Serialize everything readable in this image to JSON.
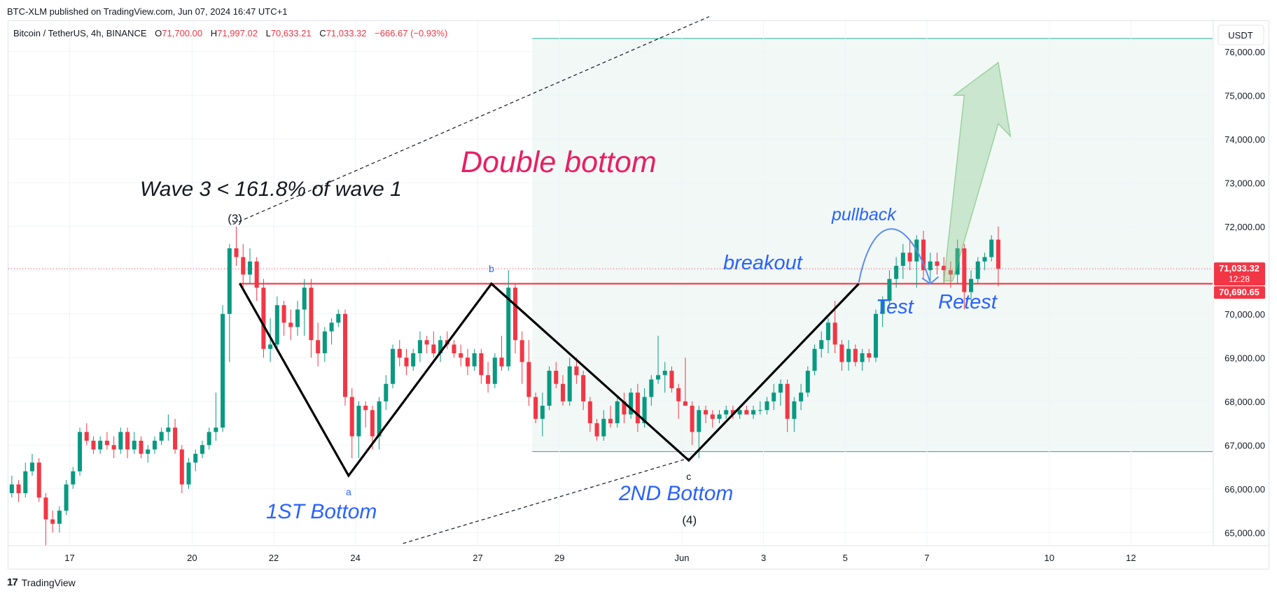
{
  "header": {
    "publish_line": "BTC-XLM published on TradingView.com, Jun 07, 2024 16:47 UTC+1"
  },
  "legend": {
    "symbol": "Bitcoin / TetherUS, 4h, BINANCE",
    "o_label": "O",
    "o_value": "71,700.00",
    "h_label": "H",
    "h_value": "71,997.02",
    "l_label": "L",
    "l_value": "70,633.21",
    "c_label": "C",
    "c_value": "71,033.32",
    "change": "−666.67 (−0.93%)"
  },
  "footer": {
    "logo_mark": "17",
    "logo_text": "TradingView"
  },
  "colors": {
    "up": "#089981",
    "down": "#f23645",
    "annotation_blue": "#2962ff",
    "title_pink": "#e91e63",
    "zone_fill": "#f1f8f6",
    "zone_line": "#22ab94",
    "level_red": "#f23645"
  },
  "chart_data": {
    "type": "candlestick",
    "symbol": "BTCUSDT",
    "timeframe": "4h",
    "currency_button": "USDT",
    "y_ticks": [
      65000,
      66000,
      67000,
      68000,
      69000,
      70000,
      71000,
      72000,
      73000,
      74000,
      75000,
      76000
    ],
    "y_tick_labels": [
      "65,000.00",
      "66,000.00",
      "67,000.00",
      "68,000.00",
      "69,000.00",
      "70,000.00",
      "71,000.00",
      "72,000.00",
      "73,000.00",
      "74,000.00",
      "75,000.00",
      "76,000.00"
    ],
    "ylim": [
      64700,
      76700
    ],
    "x_ticks": [
      {
        "label": "17",
        "slot": 9
      },
      {
        "label": "20",
        "slot": 27
      },
      {
        "label": "22",
        "slot": 39
      },
      {
        "label": "24",
        "slot": 51
      },
      {
        "label": "27",
        "slot": 69
      },
      {
        "label": "29",
        "slot": 81
      },
      {
        "label": "Jun",
        "slot": 99
      },
      {
        "label": "3",
        "slot": 111
      },
      {
        "label": "5",
        "slot": 123
      },
      {
        "label": "7",
        "slot": 135
      },
      {
        "label": "10",
        "slot": 153
      },
      {
        "label": "12",
        "slot": 165
      }
    ],
    "slots_visible": [
      0,
      177
    ],
    "price_labels": [
      {
        "value": 71033.32,
        "text": "71,033.32",
        "sub": "12:28"
      },
      {
        "value": 70690.65,
        "text": "70,690.65"
      }
    ],
    "last_price": 71033.32,
    "neckline": 70690.65,
    "target_zone": {
      "from_slot": 77,
      "to_slot": 177,
      "top": 76300,
      "bottom": 66850
    },
    "candles": [
      [
        65900,
        66300,
        65800,
        66100
      ],
      [
        66100,
        66200,
        65700,
        65900
      ],
      [
        65900,
        66600,
        65800,
        66400
      ],
      [
        66400,
        66800,
        66300,
        66600
      ],
      [
        66600,
        66700,
        65700,
        65800
      ],
      [
        65800,
        65900,
        64700,
        65300
      ],
      [
        65300,
        65500,
        65000,
        65200
      ],
      [
        65200,
        65600,
        65000,
        65500
      ],
      [
        65500,
        66200,
        65400,
        66100
      ],
      [
        66100,
        66500,
        66000,
        66400
      ],
      [
        66400,
        67400,
        66300,
        67300
      ],
      [
        67300,
        67500,
        67000,
        67100
      ],
      [
        67100,
        67200,
        66800,
        66900
      ],
      [
        66900,
        67200,
        66800,
        67100
      ],
      [
        67100,
        67300,
        66900,
        67000
      ],
      [
        67000,
        67200,
        66700,
        66900
      ],
      [
        66900,
        67400,
        66800,
        67300
      ],
      [
        67300,
        67400,
        66700,
        66900
      ],
      [
        66900,
        67300,
        66800,
        67100
      ],
      [
        67100,
        67200,
        66700,
        66800
      ],
      [
        66800,
        67000,
        66600,
        66900
      ],
      [
        66900,
        67200,
        66800,
        67100
      ],
      [
        67100,
        67400,
        67000,
        67300
      ],
      [
        67300,
        67700,
        67100,
        67400
      ],
      [
        67400,
        67600,
        66800,
        66900
      ],
      [
        66900,
        67000,
        65900,
        66100
      ],
      [
        66100,
        66700,
        66000,
        66600
      ],
      [
        66600,
        66900,
        66400,
        66800
      ],
      [
        66800,
        67100,
        66700,
        67000
      ],
      [
        67000,
        67400,
        66900,
        67300
      ],
      [
        67300,
        68200,
        67100,
        67400
      ],
      [
        67400,
        70200,
        67300,
        70000
      ],
      [
        70000,
        71600,
        68900,
        71500
      ],
      [
        71500,
        71997,
        71100,
        71300
      ],
      [
        71300,
        71600,
        70600,
        70900
      ],
      [
        70900,
        71500,
        70700,
        71200
      ],
      [
        71200,
        71300,
        70300,
        70600
      ],
      [
        70600,
        70800,
        69000,
        69200
      ],
      [
        69200,
        69900,
        68900,
        69300
      ],
      [
        69300,
        70400,
        69200,
        70200
      ],
      [
        70200,
        70300,
        69500,
        69800
      ],
      [
        69800,
        70100,
        69400,
        69700
      ],
      [
        69700,
        70300,
        69500,
        70100
      ],
      [
        70100,
        70800,
        69500,
        70600
      ],
      [
        70600,
        70800,
        69000,
        69400
      ],
      [
        69400,
        69800,
        68800,
        69100
      ],
      [
        69100,
        69700,
        68900,
        69600
      ],
      [
        69600,
        69900,
        69300,
        69800
      ],
      [
        69800,
        70100,
        69700,
        70000
      ],
      [
        70000,
        70100,
        67900,
        68100
      ],
      [
        68100,
        68300,
        66700,
        67200
      ],
      [
        67200,
        68000,
        66700,
        67900
      ],
      [
        67900,
        68000,
        67400,
        67800
      ],
      [
        67800,
        67900,
        66900,
        67200
      ],
      [
        67200,
        68100,
        66900,
        68000
      ],
      [
        68000,
        68600,
        67800,
        68400
      ],
      [
        68400,
        69300,
        68300,
        69200
      ],
      [
        69200,
        69400,
        68800,
        69000
      ],
      [
        69000,
        69200,
        68600,
        68800
      ],
      [
        68800,
        69200,
        68700,
        69100
      ],
      [
        69100,
        69600,
        68900,
        69400
      ],
      [
        69400,
        69500,
        69100,
        69300
      ],
      [
        69300,
        69600,
        69000,
        69100
      ],
      [
        69100,
        69500,
        68900,
        69400
      ],
      [
        69400,
        69600,
        69200,
        69300
      ],
      [
        69300,
        69400,
        69000,
        69100
      ],
      [
        69100,
        69300,
        68800,
        69000
      ],
      [
        69000,
        69200,
        68600,
        68800
      ],
      [
        68800,
        69200,
        68700,
        69100
      ],
      [
        69100,
        69200,
        68400,
        68600
      ],
      [
        68600,
        68900,
        68200,
        68400
      ],
      [
        68400,
        69100,
        68300,
        69000
      ],
      [
        69000,
        69500,
        68700,
        68800
      ],
      [
        68800,
        71000,
        68700,
        70600
      ],
      [
        70600,
        70700,
        69100,
        69400
      ],
      [
        69400,
        69600,
        68400,
        68900
      ],
      [
        68900,
        69400,
        67900,
        68100
      ],
      [
        68100,
        68200,
        67500,
        67600
      ],
      [
        67600,
        68200,
        67200,
        67900
      ],
      [
        67900,
        68800,
        67800,
        68700
      ],
      [
        68700,
        68900,
        68300,
        68400
      ],
      [
        68400,
        68600,
        67900,
        68000
      ],
      [
        68000,
        69000,
        67900,
        68800
      ],
      [
        68800,
        69000,
        68400,
        68600
      ],
      [
        68600,
        68700,
        67800,
        68000
      ],
      [
        68000,
        68100,
        67300,
        67500
      ],
      [
        67500,
        67600,
        67100,
        67200
      ],
      [
        67200,
        67800,
        67100,
        67600
      ],
      [
        67600,
        67900,
        67400,
        67500
      ],
      [
        67500,
        68100,
        67400,
        68000
      ],
      [
        68000,
        68200,
        67500,
        67700
      ],
      [
        67700,
        68300,
        67600,
        68200
      ],
      [
        68200,
        68400,
        67300,
        67500
      ],
      [
        67500,
        68300,
        67400,
        68100
      ],
      [
        68100,
        68600,
        67900,
        68500
      ],
      [
        68500,
        69500,
        68400,
        68600
      ],
      [
        68600,
        68900,
        68200,
        68700
      ],
      [
        68700,
        68800,
        68200,
        68300
      ],
      [
        68300,
        68400,
        67600,
        68000
      ],
      [
        68000,
        69000,
        67900,
        67900
      ],
      [
        67900,
        68000,
        67000,
        67300
      ],
      [
        67300,
        67900,
        66700,
        67800
      ],
      [
        67800,
        67900,
        67500,
        67700
      ],
      [
        67700,
        67800,
        67400,
        67600
      ],
      [
        67600,
        67800,
        67500,
        67700
      ],
      [
        67700,
        67900,
        67600,
        67800
      ],
      [
        67800,
        67900,
        67600,
        67700
      ],
      [
        67700,
        67900,
        67600,
        67800
      ],
      [
        67800,
        67900,
        67700,
        67700
      ],
      [
        67700,
        67900,
        67600,
        67800
      ],
      [
        67800,
        68000,
        67700,
        67800
      ],
      [
        67800,
        68100,
        67700,
        68000
      ],
      [
        68000,
        68400,
        67800,
        68200
      ],
      [
        68200,
        68500,
        67900,
        68400
      ],
      [
        68400,
        68500,
        67300,
        67600
      ],
      [
        67600,
        68100,
        67300,
        68000
      ],
      [
        68000,
        68400,
        67800,
        68200
      ],
      [
        68200,
        68800,
        68100,
        68700
      ],
      [
        68700,
        69300,
        68600,
        69200
      ],
      [
        69200,
        69600,
        69000,
        69400
      ],
      [
        69400,
        69900,
        69100,
        69800
      ],
      [
        69800,
        70300,
        69100,
        69300
      ],
      [
        69300,
        69400,
        68700,
        68900
      ],
      [
        68900,
        69400,
        68700,
        69200
      ],
      [
        69200,
        69300,
        68800,
        68900
      ],
      [
        68900,
        69200,
        68700,
        69100
      ],
      [
        69100,
        69200,
        68900,
        69000
      ],
      [
        69000,
        70100,
        68900,
        70000
      ],
      [
        70000,
        70400,
        69700,
        70300
      ],
      [
        70300,
        71000,
        70200,
        70800
      ],
      [
        70800,
        71300,
        70600,
        71100
      ],
      [
        71100,
        71600,
        70800,
        71400
      ],
      [
        71400,
        71700,
        71000,
        71200
      ],
      [
        71200,
        71800,
        70600,
        71700
      ],
      [
        71700,
        71900,
        70800,
        71000
      ],
      [
        71000,
        71400,
        70700,
        71200
      ],
      [
        71200,
        71400,
        70900,
        71100
      ],
      [
        71100,
        71300,
        70700,
        71000
      ],
      [
        71000,
        71200,
        70600,
        70900
      ],
      [
        70900,
        71700,
        70700,
        71500
      ],
      [
        71500,
        71600,
        70100,
        70500
      ],
      [
        70500,
        71000,
        70300,
        70800
      ],
      [
        70800,
        71300,
        70700,
        71200
      ],
      [
        71200,
        71400,
        71000,
        71300
      ],
      [
        71300,
        71800,
        71200,
        71700
      ],
      [
        71700,
        71997,
        70633,
        71033
      ]
    ],
    "annotations": {
      "title": "Double bottom",
      "wave_note": "Wave 3 < 161.8% of wave 1",
      "wave3_label": "(3)",
      "wave4_label": "(4)",
      "point_a": "a",
      "point_b": "b",
      "point_c": "c",
      "bottom1": "1ST Bottom",
      "bottom2": "2ND Bottom",
      "breakout": "breakout",
      "pullback": "pullback",
      "test": "Test",
      "retest": "Retest"
    },
    "pattern_points": [
      {
        "slot": 34,
        "price": 70700
      },
      {
        "slot": 50,
        "price": 66300
      },
      {
        "slot": 71,
        "price": 70690
      },
      {
        "slot": 100,
        "price": 66650
      },
      {
        "slot": 125,
        "price": 70690
      }
    ],
    "channel_upper": [
      {
        "slot": 33,
        "price": 72050
      },
      {
        "slot": 103,
        "price": 76800
      }
    ],
    "channel_lower": [
      {
        "slot": 58,
        "price": 64750
      },
      {
        "slot": 100,
        "price": 66700
      }
    ]
  }
}
